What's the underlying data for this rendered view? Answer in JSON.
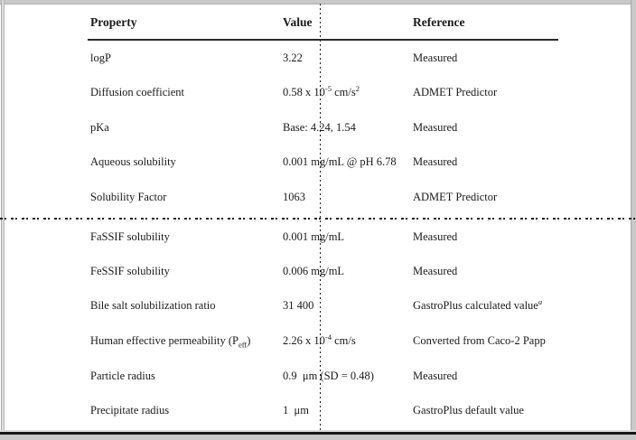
{
  "colors": {
    "text": "#1a1a1a",
    "frame_gray": "#c9c9c9",
    "bottom_border": "#161616"
  },
  "table": {
    "columns": [
      "Property",
      "Value",
      "Reference"
    ],
    "rows": [
      {
        "property": "logP",
        "value": "3.22",
        "reference": "Measured"
      },
      {
        "property": "Diffusion coefficient",
        "value": "0.58 x 10<sup>-5</sup> cm/s<sup>2</sup>",
        "reference": "ADMET Predictor"
      },
      {
        "property": "pKa",
        "value": "Base: 4.24, 1.54",
        "reference": "Measured"
      },
      {
        "property": "Aqueous solubility",
        "value": "0.001 mg/mL @ pH 6.78",
        "reference": "Measured"
      },
      {
        "property": "Solubility Factor",
        "value": "1063",
        "reference": "ADMET Predictor"
      },
      {
        "property": "FaSSIF solubility",
        "value": "0.001 mg/mL",
        "reference": "Measured"
      },
      {
        "property": "FeSSIF solubility",
        "value": "0.006 mg/mL",
        "reference": "Measured"
      },
      {
        "property": "Bile salt solubilization ratio",
        "value": "31 400",
        "reference": "GastroPlus calculated value<i><sup>a</sup></i>"
      },
      {
        "property": "Human effective permeability (P<sub>eff</sub>)",
        "value": "2.26 x 10<sup>-4</sup> cm/s",
        "reference": "Converted from Caco-2 Papp"
      },
      {
        "property": "Particle radius",
        "value": "0.9  μm (SD = 0.48)",
        "reference": "Measured"
      },
      {
        "property": "Precipitate radius",
        "value": "1  μm",
        "reference": "GastroPlus default value"
      }
    ]
  }
}
